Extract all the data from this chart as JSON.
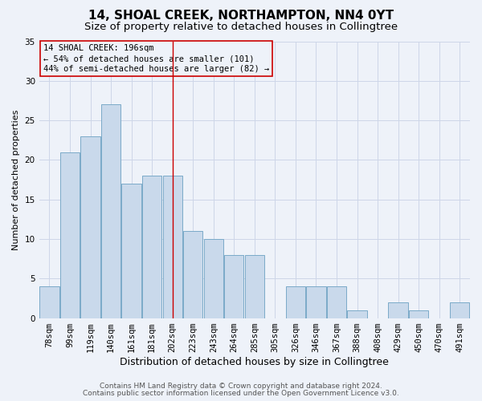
{
  "title": "14, SHOAL CREEK, NORTHAMPTON, NN4 0YT",
  "subtitle": "Size of property relative to detached houses in Collingtree",
  "xlabel": "Distribution of detached houses by size in Collingtree",
  "ylabel": "Number of detached properties",
  "categories": [
    "78sqm",
    "99sqm",
    "119sqm",
    "140sqm",
    "161sqm",
    "181sqm",
    "202sqm",
    "223sqm",
    "243sqm",
    "264sqm",
    "285sqm",
    "305sqm",
    "326sqm",
    "346sqm",
    "367sqm",
    "388sqm",
    "408sqm",
    "429sqm",
    "450sqm",
    "470sqm",
    "491sqm"
  ],
  "values": [
    4,
    21,
    23,
    27,
    17,
    18,
    18,
    11,
    10,
    8,
    8,
    0,
    4,
    4,
    4,
    1,
    0,
    2,
    1,
    0,
    2
  ],
  "bar_color": "#c9d9eb",
  "bar_edge_color": "#7aaac8",
  "grid_color": "#cdd6e8",
  "background_color": "#eef2f9",
  "vline_x": 6.0,
  "vline_color": "#cc0000",
  "annotation_line1": "14 SHOAL CREEK: 196sqm",
  "annotation_line2": "← 54% of detached houses are smaller (101)",
  "annotation_line3": "44% of semi-detached houses are larger (82) →",
  "annotation_box_color": "#cc0000",
  "ylim": [
    0,
    35
  ],
  "yticks": [
    0,
    5,
    10,
    15,
    20,
    25,
    30,
    35
  ],
  "footer_line1": "Contains HM Land Registry data © Crown copyright and database right 2024.",
  "footer_line2": "Contains public sector information licensed under the Open Government Licence v3.0.",
  "title_fontsize": 11,
  "subtitle_fontsize": 9.5,
  "xlabel_fontsize": 9,
  "ylabel_fontsize": 8,
  "tick_fontsize": 7.5,
  "annotation_fontsize": 7.5,
  "footer_fontsize": 6.5
}
